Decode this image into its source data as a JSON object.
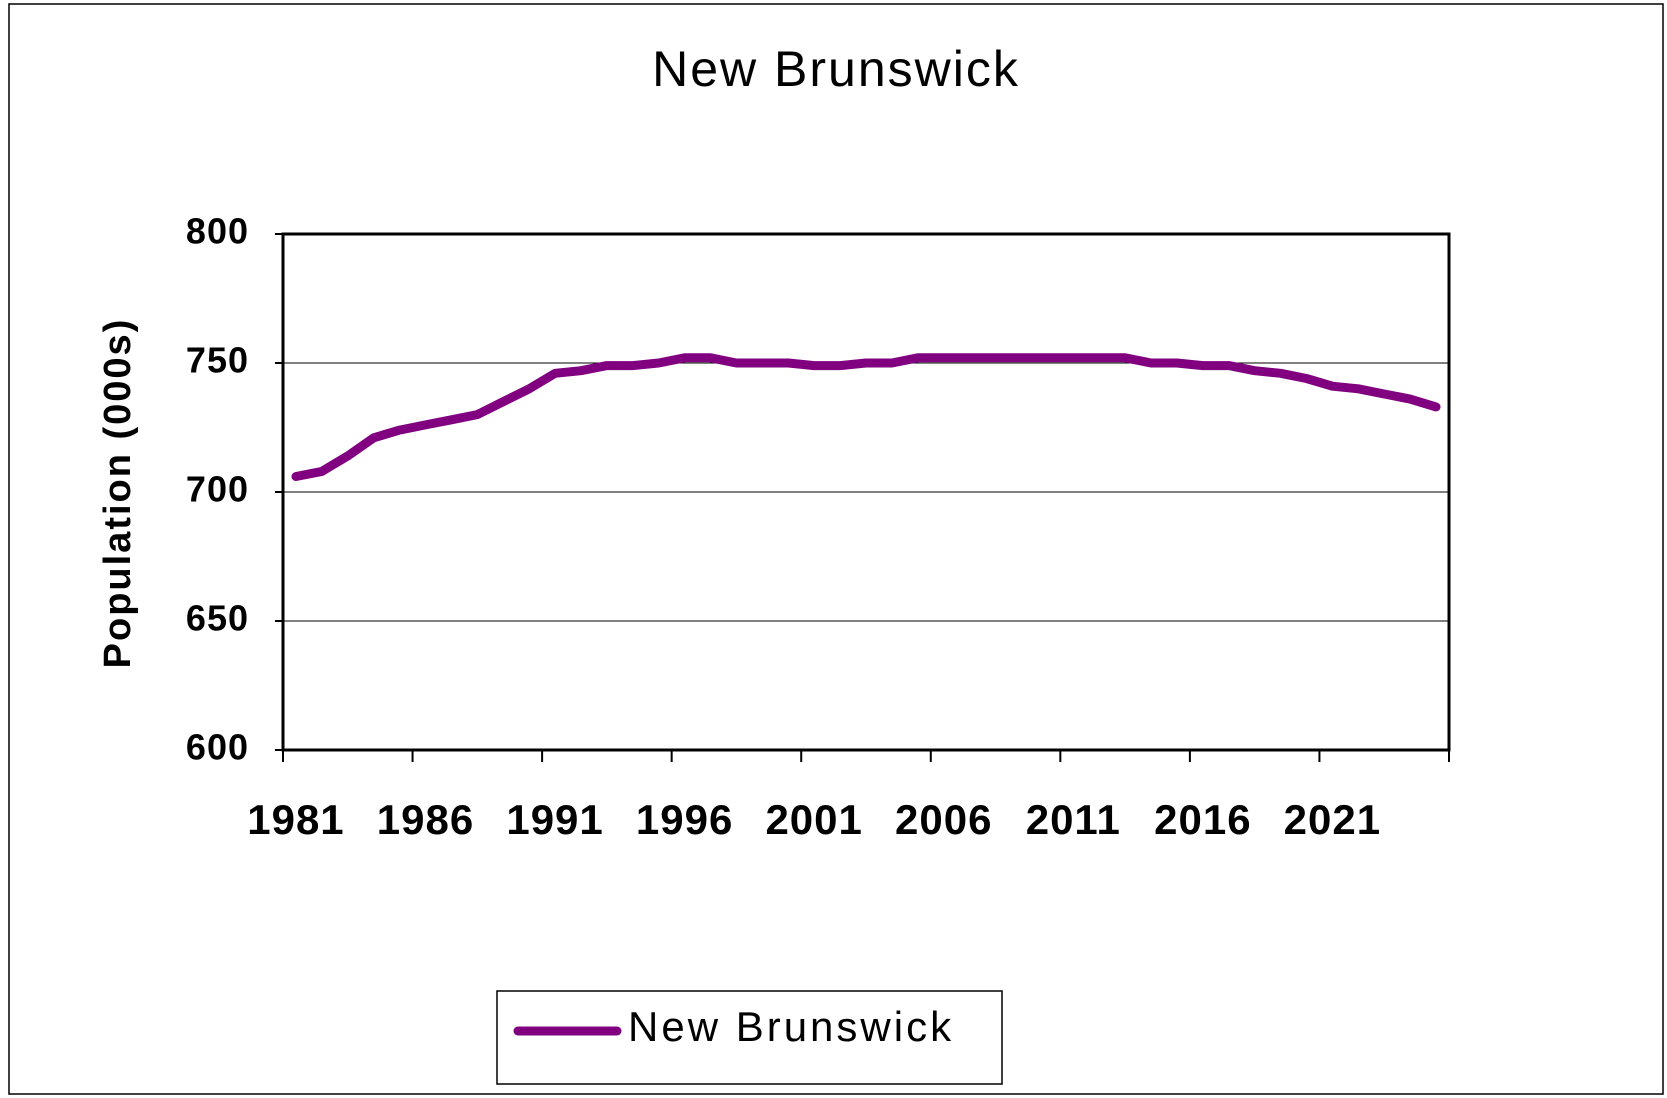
{
  "chart_data": {
    "type": "line",
    "title": "New Brunswick",
    "y_label": "Population (000s)",
    "categories": [
      "1981",
      null,
      null,
      null,
      null,
      "1986",
      null,
      null,
      null,
      null,
      "1991",
      null,
      null,
      null,
      null,
      "1996",
      null,
      null,
      null,
      null,
      "2001",
      null,
      null,
      null,
      null,
      "2006",
      null,
      null,
      null,
      null,
      "2011",
      null,
      null,
      null,
      null,
      "2016",
      null,
      null,
      null,
      null,
      "2021",
      null,
      null,
      null,
      null
    ],
    "series": [
      {
        "name": "New Brunswick",
        "color": "#800080",
        "values": [
          706,
          708,
          714,
          721,
          724,
          726,
          728,
          730,
          735,
          740,
          746,
          747,
          749,
          749,
          750,
          752,
          752,
          750,
          750,
          750,
          749,
          749,
          750,
          750,
          752,
          752,
          752,
          752,
          752,
          752,
          752,
          752,
          752,
          750,
          750,
          749,
          749,
          747,
          746,
          744,
          741,
          740,
          738,
          736,
          733
        ]
      }
    ],
    "ylim": [
      600,
      800
    ],
    "yticks": [
      600,
      650,
      700,
      750,
      800
    ],
    "grid": true,
    "legend": "bottom"
  }
}
